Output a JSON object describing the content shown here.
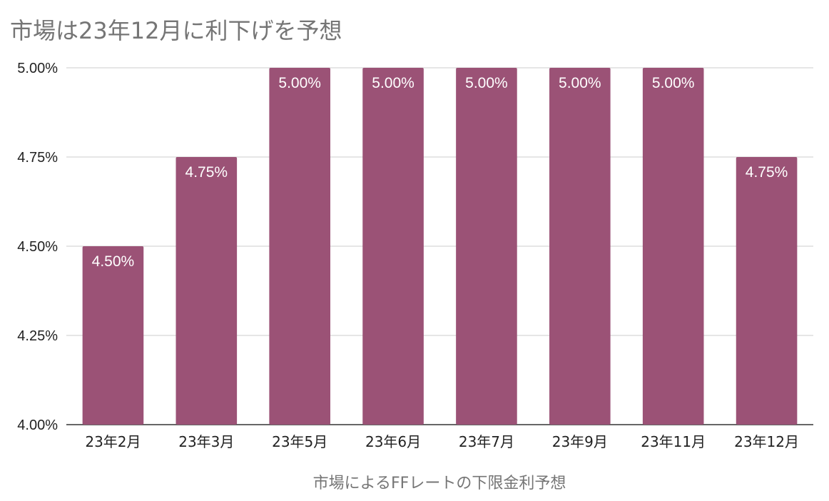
{
  "chart_data": {
    "type": "bar",
    "title": "市場は23年12月に利下げを予想",
    "xlabel": "市場によるFFレートの下限金利予想",
    "ylabel": "",
    "categories": [
      "23年2月",
      "23年3月",
      "23年5月",
      "23年6月",
      "23年7月",
      "23年9月",
      "23年11月",
      "23年12月"
    ],
    "values": [
      4.5,
      4.75,
      5.0,
      5.0,
      5.0,
      5.0,
      5.0,
      4.75
    ],
    "data_labels": [
      "4.50%",
      "4.75%",
      "5.00%",
      "5.00%",
      "5.00%",
      "5.00%",
      "5.00%",
      "4.75%"
    ],
    "ylim": [
      4.0,
      5.0
    ],
    "y_ticks": [
      4.0,
      4.25,
      4.5,
      4.75,
      5.0
    ],
    "y_tick_labels": [
      "4.00%",
      "4.25%",
      "4.50%",
      "4.75%",
      "5.00%"
    ],
    "grid": true,
    "legend": "none",
    "colors": {
      "bar": "#9b5276",
      "grid": "#cccccc",
      "title": "#757575"
    }
  }
}
